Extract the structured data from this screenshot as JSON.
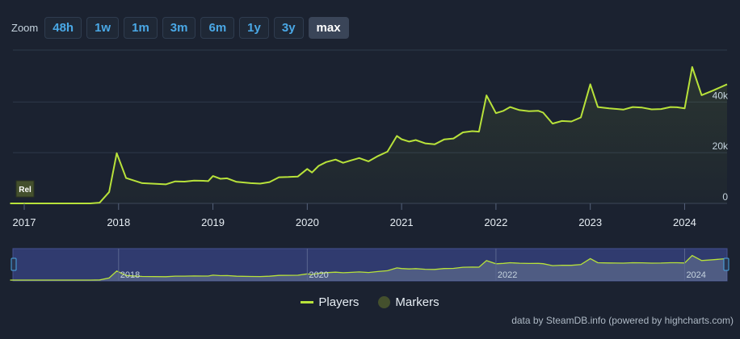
{
  "zoom": {
    "label": "Zoom",
    "buttons": [
      "48h",
      "1w",
      "1m",
      "3m",
      "6m",
      "1y",
      "3y",
      "max"
    ],
    "active": "max"
  },
  "chart_data": {
    "type": "line",
    "series": [
      {
        "name": "Players",
        "color": "#b8e23a",
        "x": [
          2016.85,
          2017.0,
          2017.5,
          2017.7,
          2017.8,
          2017.9,
          2017.98,
          2018.08,
          2018.25,
          2018.5,
          2018.6,
          2018.7,
          2018.8,
          2018.9,
          2018.95,
          2019.0,
          2019.08,
          2019.15,
          2019.25,
          2019.4,
          2019.5,
          2019.6,
          2019.7,
          2019.8,
          2019.9,
          2020.0,
          2020.05,
          2020.12,
          2020.2,
          2020.3,
          2020.38,
          2020.45,
          2020.55,
          2020.65,
          2020.75,
          2020.85,
          2020.95,
          2021.0,
          2021.08,
          2021.15,
          2021.25,
          2021.35,
          2021.45,
          2021.55,
          2021.65,
          2021.75,
          2021.82,
          2021.9,
          2022.0,
          2022.08,
          2022.15,
          2022.25,
          2022.35,
          2022.45,
          2022.5,
          2022.6,
          2022.7,
          2022.8,
          2022.9,
          2023.0,
          2023.08,
          2023.2,
          2023.35,
          2023.45,
          2023.55,
          2023.65,
          2023.75,
          2023.85,
          2023.92,
          2024.0,
          2024.08,
          2024.18,
          2024.3,
          2024.45
        ],
        "values": [
          0,
          0,
          0,
          0,
          300,
          4500,
          19800,
          10000,
          8000,
          7500,
          8700,
          8600,
          9000,
          8900,
          8800,
          10800,
          9700,
          9900,
          8500,
          8000,
          7800,
          8400,
          10300,
          10400,
          10600,
          13600,
          12200,
          14800,
          16300,
          17300,
          16000,
          16800,
          17900,
          16600,
          18700,
          20400,
          26600,
          25300,
          24400,
          25000,
          23700,
          23300,
          25200,
          25600,
          28000,
          28500,
          28300,
          42600,
          35600,
          36500,
          38000,
          36800,
          36400,
          36500,
          35800,
          31500,
          32500,
          32300,
          33900,
          47000,
          38000,
          37500,
          37000,
          38000,
          37800,
          37100,
          37200,
          38000,
          37900,
          37500,
          53800,
          42700,
          44500,
          47000
        ]
      }
    ],
    "markers": [
      {
        "name": "Markers",
        "label": "Rel",
        "x": 2017.0,
        "color": "#44502d"
      }
    ],
    "x_ticks": [
      "2017",
      "2018",
      "2019",
      "2020",
      "2021",
      "2022",
      "2023",
      "2024"
    ],
    "y_ticks": [
      "0",
      "20k",
      "40k"
    ],
    "xlim": [
      2016.88,
      2024.45
    ],
    "ylim": [
      0,
      60000
    ],
    "navigator": {
      "x_ticks": [
        "2018",
        "2020",
        "2022",
        "2024"
      ]
    },
    "legend": [
      "Players",
      "Markers"
    ],
    "legend_position": "bottom-center",
    "grid": true
  },
  "credits": "data by SteamDB.info (powered by highcharts.com)"
}
